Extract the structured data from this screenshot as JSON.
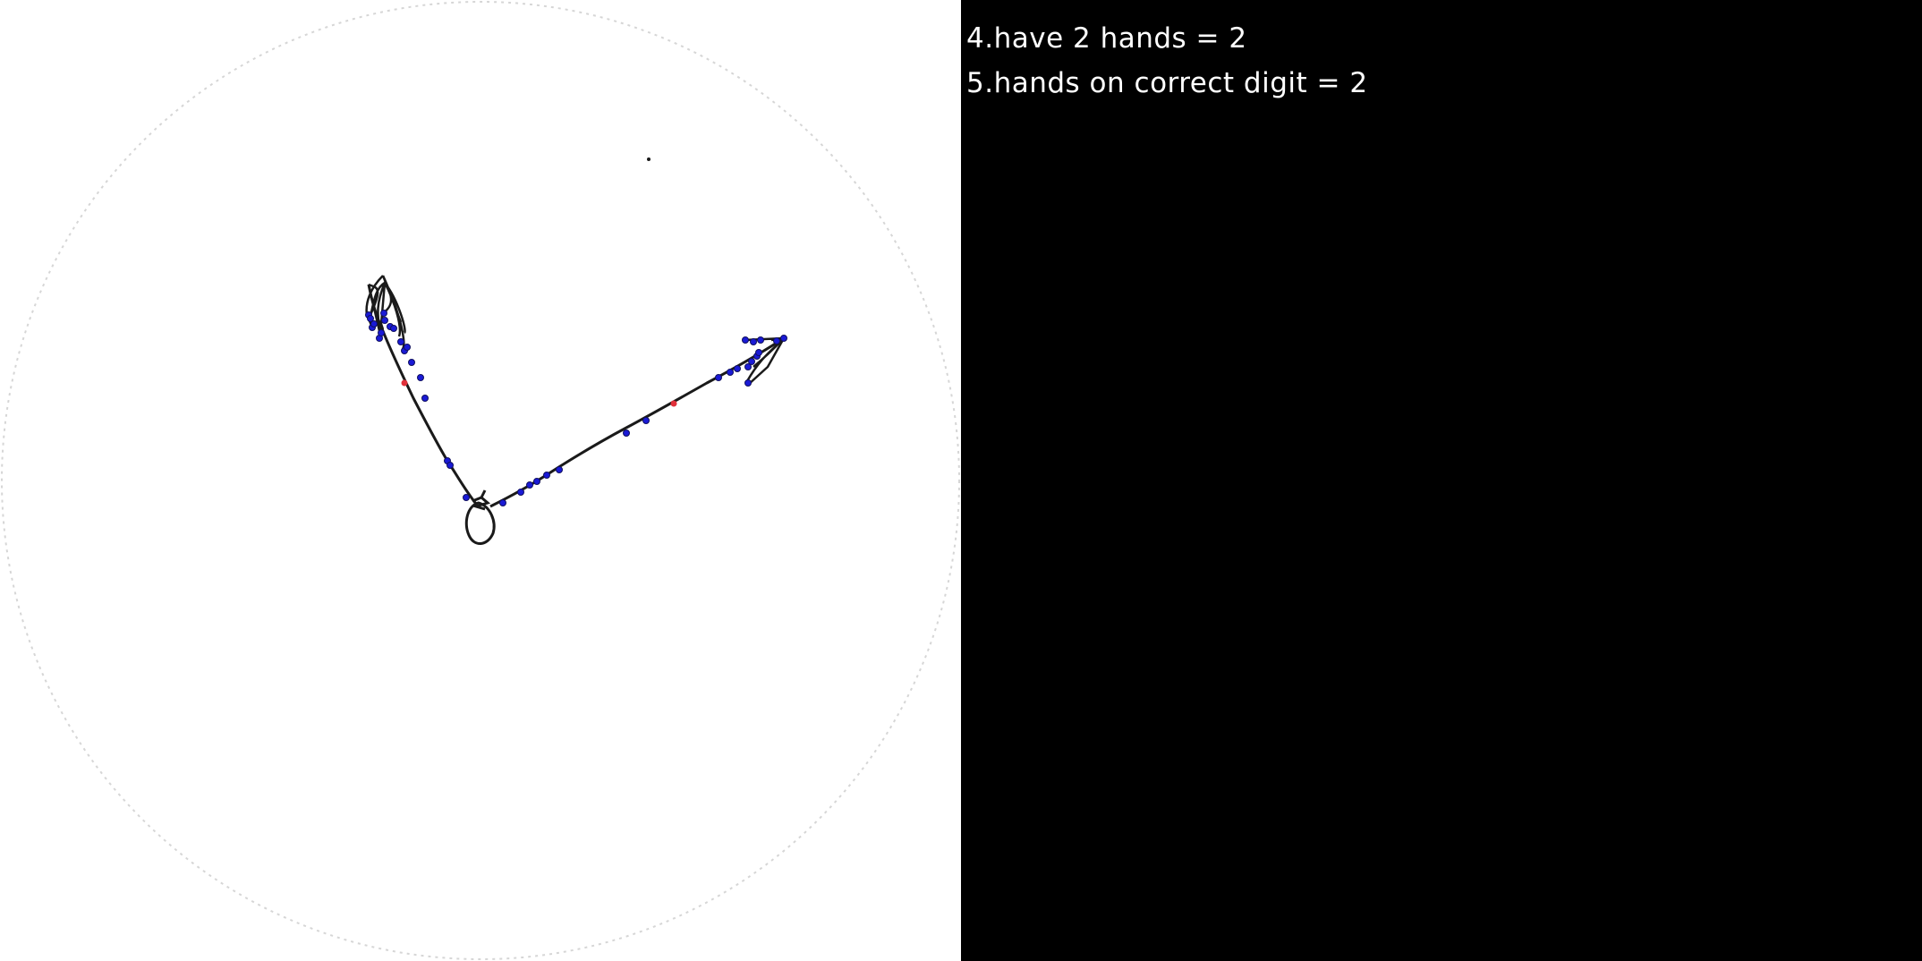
{
  "scoring": {
    "lines": [
      "4.have 2 hands = 2",
      "5.hands on correct digit = 2"
    ]
  },
  "drawing": {
    "ink_color": "#1a1a1a",
    "point_color": "#1a1ad6",
    "highlight_color": "#e0303a",
    "guide_circle_color": "#d0d0d0"
  }
}
